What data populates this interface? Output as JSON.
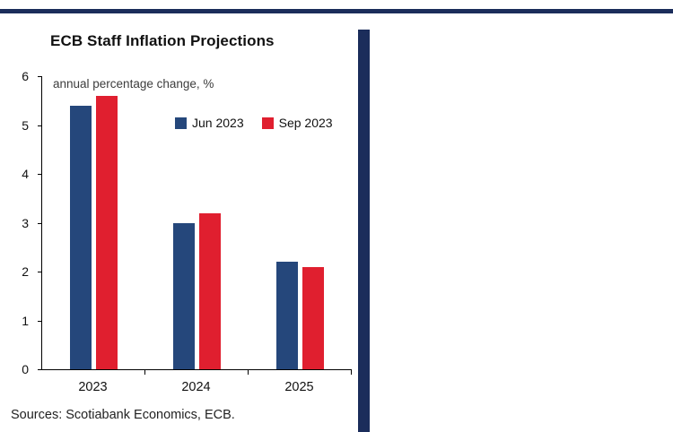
{
  "colors": {
    "navy_rule": "#1b2d5b",
    "series_jun": "#25477b",
    "series_sep": "#e01f2f",
    "axis": "#000000"
  },
  "chart_data": {
    "type": "bar",
    "title": "ECB Staff Inflation Projections",
    "subtitle": "annual percentage change, %",
    "categories": [
      "2023",
      "2024",
      "2025"
    ],
    "series": [
      {
        "name": "Jun 2023",
        "color": "#25477b",
        "values": [
          5.4,
          3.0,
          2.2
        ]
      },
      {
        "name": "Sep 2023",
        "color": "#e01f2f",
        "values": [
          5.6,
          3.2,
          2.1
        ]
      }
    ],
    "xlabel": "",
    "ylabel": "annual percentage change, %",
    "ylim": [
      0,
      6
    ],
    "yticks": [
      0,
      1,
      2,
      3,
      4,
      5,
      6
    ],
    "grid": "off",
    "legend_position": "upper center inside plot",
    "source": "Sources: Scotiabank Economics, ECB."
  }
}
